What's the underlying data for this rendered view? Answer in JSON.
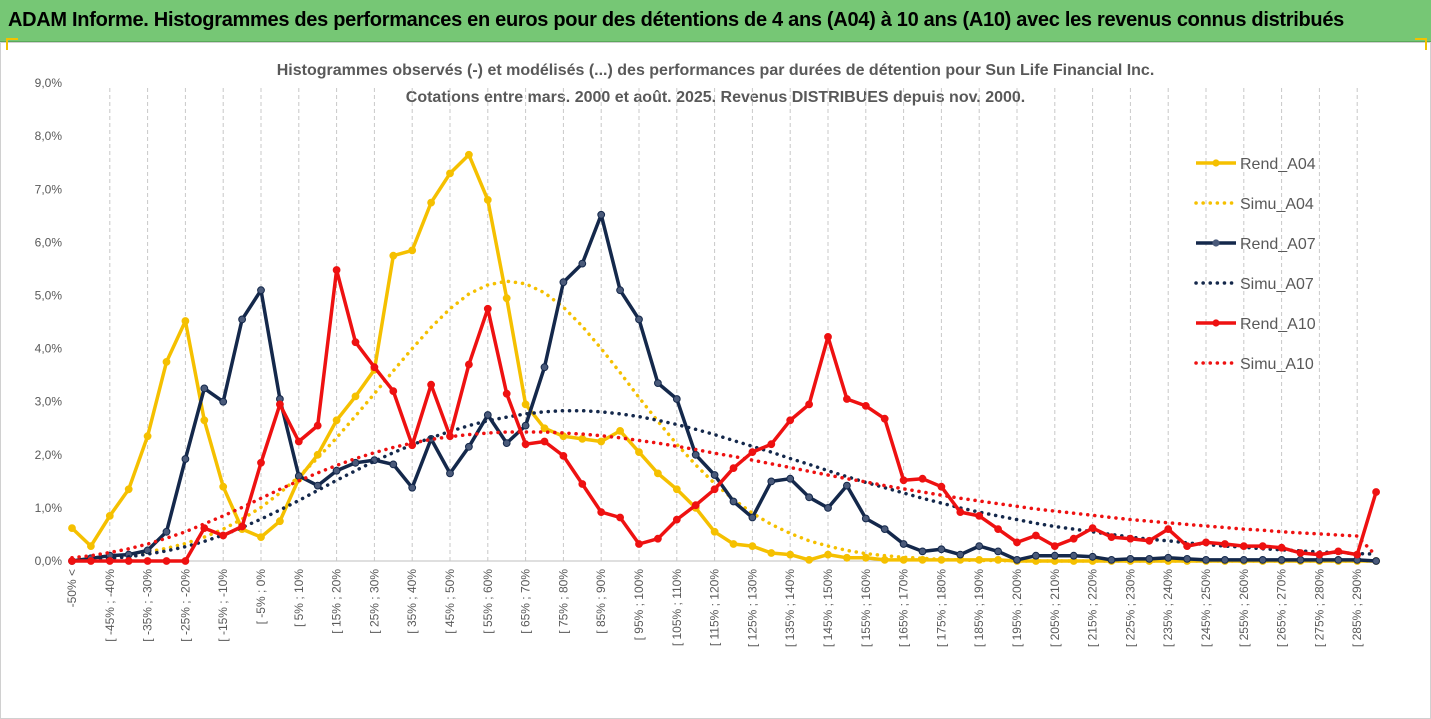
{
  "header": {
    "title": "ADAM Informe. Histogrammes des performances en euros pour des détentions de 4 ans (A04) à 10 ans (A10) avec les revenus connus distribués"
  },
  "chart_data": {
    "type": "line",
    "title": "Histogrammes observés (-) et modélisés (...) des performances par durées de détention pour Sun Life Financial Inc.",
    "subtitle": "Cotations entre mars. 2000 et août. 2025. Revenus DISTRIBUES depuis nov. 2000.",
    "ylim": [
      0,
      9
    ],
    "y_ticks": [
      "0,0%",
      "1,0%",
      "2,0%",
      "3,0%",
      "4,0%",
      "5,0%",
      "6,0%",
      "7,0%",
      "8,0%",
      "9,0%"
    ],
    "grid": "vertical dashed",
    "legend": "right",
    "x_labels": [
      "-50% <",
      "[ -45% ; -40%",
      "[ -35% ; -30%",
      "[ -25% ; -20%",
      "[ -15% ; -10%",
      "[ -5% ; 0%",
      "[ 5% ; 10%",
      "[ 15% ; 20%",
      "[ 25% ; 30%",
      "[ 35% ; 40%",
      "[ 45% ; 50%",
      "[ 55% ; 60%",
      "[ 65% ; 70%",
      "[ 75% ; 80%",
      "[ 85% ; 90%",
      "[ 95% ; 100%",
      "[ 105% ; 110%",
      "[ 115% ; 120%",
      "[ 125% ; 130%",
      "[ 135% ; 140%",
      "[ 145% ; 150%",
      "[ 155% ; 160%",
      "[ 165% ; 170%",
      "[ 175% ; 180%",
      "[ 185% ; 190%",
      "[ 195% ; 200%",
      "[ 205% ; 210%",
      "[ 215% ; 220%",
      "[ 225% ; 230%",
      "[ 235% ; 240%",
      "[ 245% ; 250%",
      "[ 255% ; 260%",
      "[ 265% ; 270%",
      "[ 275% ; 280%",
      "[ 285% ; 290%"
    ],
    "series": [
      {
        "name": "Rend_A04",
        "style": "solid",
        "color": "#f5c000",
        "values": [
          0.62,
          0.28,
          0.85,
          1.35,
          2.35,
          3.75,
          4.52,
          2.65,
          1.4,
          0.6,
          0.45,
          0.75,
          1.55,
          2.0,
          2.65,
          3.1,
          3.6,
          5.75,
          5.85,
          6.75,
          7.3,
          7.65,
          6.8,
          4.95,
          2.95,
          2.5,
          2.35,
          2.3,
          2.25,
          2.45,
          2.05,
          1.65,
          1.35,
          1.0,
          0.55,
          0.32,
          0.28,
          0.15,
          0.12,
          0.02,
          0.12,
          0.06,
          0.06,
          0.02,
          0.02,
          0.02,
          0.02,
          0.02,
          0.02,
          0.02,
          0.0,
          0.0,
          0.0,
          0.0,
          0.0,
          0.0,
          0.0,
          0.0,
          0.0,
          0.0,
          0.0,
          0.0,
          0.0,
          0.0,
          0.0,
          0.0,
          0.0,
          0.0,
          0.0,
          0.0
        ]
      },
      {
        "name": "Simu_A04",
        "style": "dotted",
        "color": "#f5c000",
        "values": [
          0.03,
          0.05,
          0.08,
          0.12,
          0.17,
          0.24,
          0.33,
          0.45,
          0.6,
          0.79,
          1.01,
          1.28,
          1.59,
          1.94,
          2.32,
          2.73,
          3.15,
          3.58,
          4.0,
          4.4,
          4.75,
          5.03,
          5.2,
          5.27,
          5.22,
          5.05,
          4.78,
          4.42,
          4.0,
          3.55,
          3.08,
          2.63,
          2.2,
          1.81,
          1.46,
          1.16,
          0.9,
          0.69,
          0.52,
          0.38,
          0.28,
          0.2,
          0.14,
          0.1,
          0.07,
          0.05,
          0.03,
          0.02,
          0.01,
          0.01,
          0.0,
          0.0,
          0.0,
          0.0,
          0.0,
          0.0,
          0.0,
          0.0,
          0.0,
          0.0,
          0.0,
          0.0,
          0.0,
          0.0,
          0.0,
          0.0,
          0.0,
          0.0,
          0.0,
          0.0
        ]
      },
      {
        "name": "Rend_A07",
        "style": "solid",
        "color": "#14284b",
        "values": [
          0.0,
          0.05,
          0.1,
          0.12,
          0.2,
          0.55,
          1.92,
          3.25,
          3.0,
          4.55,
          5.1,
          3.05,
          1.6,
          1.42,
          1.7,
          1.85,
          1.9,
          1.82,
          1.38,
          2.3,
          1.65,
          2.15,
          2.75,
          2.22,
          2.55,
          3.65,
          5.25,
          5.6,
          6.52,
          5.1,
          4.55,
          3.35,
          3.05,
          2.0,
          1.62,
          1.12,
          0.82,
          1.5,
          1.55,
          1.2,
          1.0,
          1.42,
          0.8,
          0.6,
          0.32,
          0.18,
          0.22,
          0.12,
          0.28,
          0.18,
          0.02,
          0.1,
          0.1,
          0.1,
          0.08,
          0.02,
          0.04,
          0.04,
          0.06,
          0.04,
          0.02,
          0.02,
          0.02,
          0.02,
          0.02,
          0.02,
          0.02,
          0.02,
          0.02,
          0.0
        ]
      },
      {
        "name": "Simu_A07",
        "style": "dotted",
        "color": "#14284b",
        "values": [
          0.02,
          0.03,
          0.05,
          0.08,
          0.13,
          0.19,
          0.27,
          0.37,
          0.49,
          0.63,
          0.79,
          0.96,
          1.14,
          1.33,
          1.52,
          1.7,
          1.88,
          2.04,
          2.19,
          2.32,
          2.44,
          2.55,
          2.64,
          2.71,
          2.77,
          2.81,
          2.83,
          2.83,
          2.81,
          2.77,
          2.72,
          2.65,
          2.57,
          2.48,
          2.38,
          2.27,
          2.16,
          2.05,
          1.93,
          1.82,
          1.7,
          1.59,
          1.48,
          1.38,
          1.28,
          1.18,
          1.09,
          1.0,
          0.92,
          0.85,
          0.78,
          0.71,
          0.65,
          0.6,
          0.55,
          0.5,
          0.45,
          0.41,
          0.38,
          0.34,
          0.31,
          0.28,
          0.26,
          0.23,
          0.21,
          0.19,
          0.17,
          0.16,
          0.14,
          0.13
        ]
      },
      {
        "name": "Rend_A10",
        "style": "solid",
        "color": "#ee1111",
        "values": [
          0.0,
          0.0,
          0.0,
          0.0,
          0.0,
          0.0,
          0.0,
          0.62,
          0.48,
          0.65,
          1.85,
          2.95,
          2.25,
          2.55,
          5.48,
          4.12,
          3.65,
          3.2,
          2.18,
          3.32,
          2.35,
          3.7,
          4.75,
          3.15,
          2.2,
          2.25,
          1.98,
          1.45,
          0.92,
          0.82,
          0.32,
          0.42,
          0.78,
          1.05,
          1.35,
          1.75,
          2.05,
          2.2,
          2.65,
          2.95,
          4.22,
          3.05,
          2.92,
          2.68,
          1.52,
          1.55,
          1.4,
          0.92,
          0.85,
          0.6,
          0.35,
          0.48,
          0.28,
          0.42,
          0.62,
          0.45,
          0.42,
          0.38,
          0.6,
          0.28,
          0.35,
          0.32,
          0.28,
          0.28,
          0.25,
          0.15,
          0.12,
          0.18,
          0.12,
          1.3
        ]
      },
      {
        "name": "Simu_A10",
        "style": "dotted",
        "color": "#ee1111",
        "values": [
          0.06,
          0.1,
          0.16,
          0.23,
          0.32,
          0.43,
          0.55,
          0.7,
          0.85,
          1.01,
          1.18,
          1.35,
          1.51,
          1.66,
          1.8,
          1.93,
          2.04,
          2.14,
          2.22,
          2.29,
          2.34,
          2.38,
          2.41,
          2.43,
          2.43,
          2.43,
          2.41,
          2.39,
          2.36,
          2.32,
          2.27,
          2.22,
          2.16,
          2.1,
          2.03,
          1.97,
          1.9,
          1.83,
          1.76,
          1.69,
          1.62,
          1.55,
          1.49,
          1.42,
          1.36,
          1.3,
          1.24,
          1.18,
          1.13,
          1.08,
          1.03,
          0.98,
          0.94,
          0.9,
          0.86,
          0.82,
          0.78,
          0.75,
          0.72,
          0.69,
          0.66,
          0.63,
          0.6,
          0.58,
          0.55,
          0.53,
          0.51,
          0.49,
          0.47,
          0.1
        ]
      }
    ]
  }
}
